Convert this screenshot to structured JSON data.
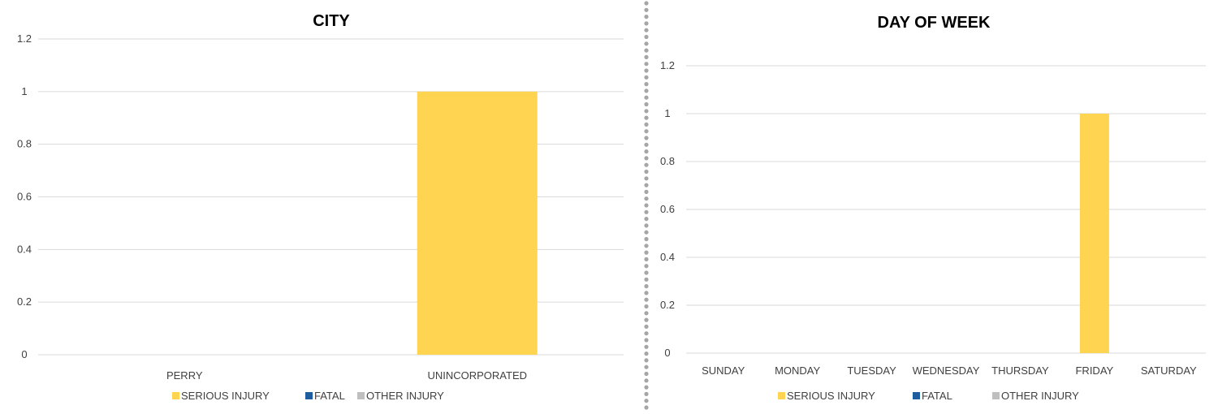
{
  "colors": {
    "serious_injury": "#FFD450",
    "fatal": "#1F5E9E",
    "other_injury": "#BFBFBF",
    "grid": "#d9d9d9",
    "divider": "#a6a6a6"
  },
  "chart_data": [
    {
      "type": "bar",
      "title": "CITY",
      "categories": [
        "PERRY",
        "UNINCORPORATED"
      ],
      "series": [
        {
          "name": "SERIOUS INJURY",
          "values": [
            0,
            1
          ]
        },
        {
          "name": "FATAL",
          "values": [
            0,
            0
          ]
        },
        {
          "name": "OTHER INJURY",
          "values": [
            0,
            0
          ]
        }
      ],
      "yticks": [
        "0",
        "0.2",
        "0.4",
        "0.6",
        "0.8",
        "1",
        "1.2"
      ],
      "ylim": [
        0,
        1.2
      ],
      "grid": true,
      "legend": "bottom",
      "xlabel": "",
      "ylabel": ""
    },
    {
      "type": "bar",
      "title": "DAY OF WEEK",
      "categories": [
        "SUNDAY",
        "MONDAY",
        "TUESDAY",
        "WEDNESDAY",
        "THURSDAY",
        "FRIDAY",
        "SATURDAY"
      ],
      "series": [
        {
          "name": "SERIOUS INJURY",
          "values": [
            0,
            0,
            0,
            0,
            0,
            1,
            0
          ]
        },
        {
          "name": "FATAL",
          "values": [
            0,
            0,
            0,
            0,
            0,
            0,
            0
          ]
        },
        {
          "name": "OTHER INJURY",
          "values": [
            0,
            0,
            0,
            0,
            0,
            0,
            0
          ]
        }
      ],
      "yticks": [
        "0",
        "0.2",
        "0.4",
        "0.6",
        "0.8",
        "1",
        "1.2"
      ],
      "ylim": [
        0,
        1.2
      ],
      "grid": true,
      "legend": "bottom",
      "xlabel": "",
      "ylabel": ""
    }
  ]
}
